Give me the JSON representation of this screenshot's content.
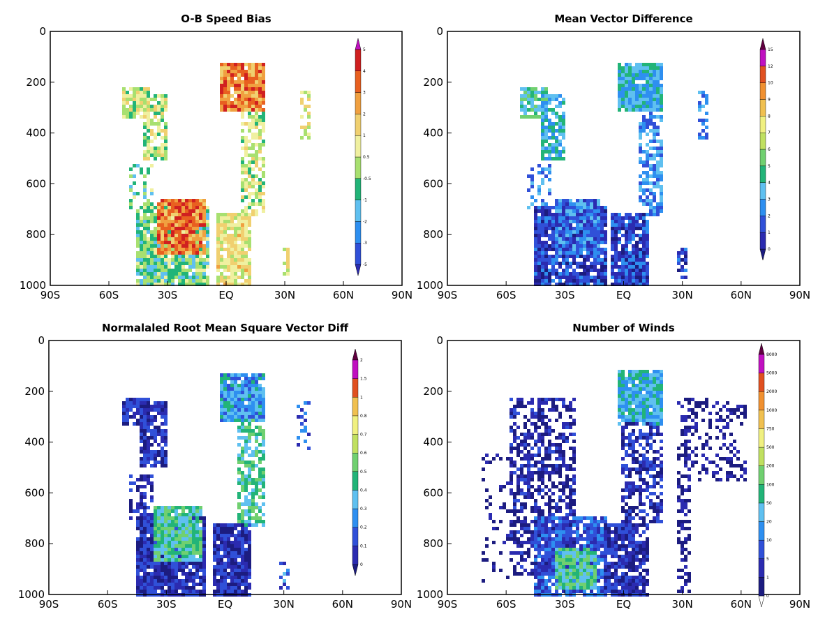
{
  "chart_data": [
    {
      "type": "heatmap",
      "title": "O-B Speed Bias",
      "x_ticks": [
        "90S",
        "60S",
        "30S",
        "EQ",
        "30N",
        "60N",
        "90N"
      ],
      "y_ticks": [
        "0",
        "200",
        "400",
        "600",
        "800",
        "1000"
      ],
      "ylim": [
        1000,
        0
      ],
      "xlim": [
        -90,
        90
      ],
      "colorbar_labels": [
        "-5",
        "-3",
        "-2",
        "-1",
        "-0.5",
        "0.5",
        "1",
        "2",
        "3",
        "4",
        "5"
      ],
      "colors": [
        "#2b2bb0",
        "#3050d8",
        "#2e8ff0",
        "#5fc0f0",
        "#22b478",
        "#a8e070",
        "#f0f0a0",
        "#f0d070",
        "#f0a040",
        "#e86020",
        "#d02020",
        "#c010c0"
      ],
      "value_type": "signed",
      "regions": [
        {
          "lat": [
            -52,
            -40
          ],
          "p": [
            230,
            330
          ],
          "value": 0,
          "density": 0.85
        },
        {
          "lat": [
            -42,
            -30
          ],
          "p": [
            250,
            500
          ],
          "value": 0,
          "density": 0.75
        },
        {
          "lat": [
            -48,
            -38
          ],
          "p": [
            530,
            700
          ],
          "value": -1,
          "density": 0.35
        },
        {
          "lat": [
            -2,
            20
          ],
          "p": [
            130,
            310
          ],
          "value": 2.5,
          "density": 0.95
        },
        {
          "lat": [
            8,
            20
          ],
          "p": [
            320,
            720
          ],
          "value": 0,
          "density": 0.65
        },
        {
          "lat": [
            38,
            42
          ],
          "p": [
            240,
            420
          ],
          "value": 0.5,
          "density": 0.5
        },
        {
          "lat": [
            -45,
            -10
          ],
          "p": [
            700,
            1000
          ],
          "value": -1,
          "density": 0.9
        },
        {
          "lat": [
            -35,
            -12
          ],
          "p": [
            660,
            870
          ],
          "value": 2.5,
          "density": 0.95
        },
        {
          "lat": [
            -5,
            12
          ],
          "p": [
            720,
            1000
          ],
          "value": 0.5,
          "density": 0.9
        },
        {
          "lat": [
            29,
            32
          ],
          "p": [
            860,
            970
          ],
          "value": 0.5,
          "density": 0.6
        }
      ]
    },
    {
      "type": "heatmap",
      "title": "Mean Vector Difference",
      "x_ticks": [
        "90S",
        "60S",
        "30S",
        "EQ",
        "30N",
        "60N",
        "90N"
      ],
      "y_ticks": [
        "0",
        "200",
        "400",
        "600",
        "800",
        "1000"
      ],
      "ylim": [
        1000,
        0
      ],
      "xlim": [
        -90,
        90
      ],
      "colorbar_labels": [
        "0",
        "1",
        "2",
        "3",
        "4",
        "5",
        "6",
        "7",
        "8",
        "9",
        "10",
        "12",
        "15"
      ],
      "colors": [
        "#1c1c80",
        "#2b2bb0",
        "#3050d8",
        "#2e8ff0",
        "#5fc0f0",
        "#22b478",
        "#70d070",
        "#c0e060",
        "#f0f080",
        "#f0c050",
        "#f09030",
        "#e05020",
        "#c010c0",
        "#600040"
      ],
      "value_type": "magnitude",
      "regions": [
        {
          "lat": [
            -52,
            -40
          ],
          "p": [
            230,
            330
          ],
          "value": 5,
          "density": 0.85
        },
        {
          "lat": [
            -42,
            -30
          ],
          "p": [
            250,
            500
          ],
          "value": 4,
          "density": 0.75
        },
        {
          "lat": [
            -48,
            -38
          ],
          "p": [
            530,
            700
          ],
          "value": 3,
          "density": 0.35
        },
        {
          "lat": [
            -2,
            20
          ],
          "p": [
            130,
            310
          ],
          "value": 4,
          "density": 0.95
        },
        {
          "lat": [
            8,
            20
          ],
          "p": [
            320,
            720
          ],
          "value": 3,
          "density": 0.65
        },
        {
          "lat": [
            38,
            42
          ],
          "p": [
            240,
            420
          ],
          "value": 3,
          "density": 0.5
        },
        {
          "lat": [
            -45,
            -10
          ],
          "p": [
            700,
            1000
          ],
          "value": 1.5,
          "density": 0.9
        },
        {
          "lat": [
            -35,
            -12
          ],
          "p": [
            660,
            870
          ],
          "value": 2.5,
          "density": 0.95
        },
        {
          "lat": [
            -5,
            12
          ],
          "p": [
            720,
            1000
          ],
          "value": 1.5,
          "density": 0.9
        },
        {
          "lat": [
            29,
            32
          ],
          "p": [
            860,
            970
          ],
          "value": 1.5,
          "density": 0.6
        }
      ]
    },
    {
      "type": "heatmap",
      "title": "Normalaled Root Mean Square Vector Diff",
      "x_ticks": [
        "90S",
        "60S",
        "30S",
        "EQ",
        "30N",
        "60N",
        "90N"
      ],
      "y_ticks": [
        "0",
        "200",
        "400",
        "600",
        "800",
        "1000"
      ],
      "ylim": [
        1000,
        0
      ],
      "xlim": [
        -90,
        90
      ],
      "colorbar_labels": [
        "0",
        "0.1",
        "0.2",
        "0.3",
        "0.4",
        "0.5",
        "0.6",
        "0.7",
        "0.8",
        "1",
        "1.5",
        "2"
      ],
      "colors": [
        "#1c1c80",
        "#2b2bb0",
        "#3050d8",
        "#2e8ff0",
        "#5fc0f0",
        "#22b478",
        "#70d070",
        "#c0e060",
        "#f0f080",
        "#f0c050",
        "#e05020",
        "#c010c0",
        "#600040"
      ],
      "value_type": "magnitude",
      "regions": [
        {
          "lat": [
            -52,
            -40
          ],
          "p": [
            230,
            330
          ],
          "value": 1,
          "density": 0.85
        },
        {
          "lat": [
            -42,
            -30
          ],
          "p": [
            250,
            500
          ],
          "value": 1,
          "density": 0.75
        },
        {
          "lat": [
            -48,
            -38
          ],
          "p": [
            530,
            700
          ],
          "value": 1,
          "density": 0.35
        },
        {
          "lat": [
            -2,
            20
          ],
          "p": [
            130,
            310
          ],
          "value": 3.5,
          "density": 0.95
        },
        {
          "lat": [
            8,
            20
          ],
          "p": [
            320,
            720
          ],
          "value": 5,
          "density": 0.65
        },
        {
          "lat": [
            38,
            42
          ],
          "p": [
            240,
            420
          ],
          "value": 2,
          "density": 0.5
        },
        {
          "lat": [
            -45,
            -10
          ],
          "p": [
            700,
            1000
          ],
          "value": 1,
          "density": 0.9
        },
        {
          "lat": [
            -35,
            -12
          ],
          "p": [
            660,
            870
          ],
          "value": 5,
          "density": 0.95
        },
        {
          "lat": [
            -5,
            12
          ],
          "p": [
            720,
            1000
          ],
          "value": 1,
          "density": 0.9
        },
        {
          "lat": [
            29,
            32
          ],
          "p": [
            860,
            970
          ],
          "value": 2.5,
          "density": 0.6
        }
      ]
    },
    {
      "type": "heatmap",
      "title": "Number of Winds",
      "x_ticks": [
        "90S",
        "60S",
        "30S",
        "EQ",
        "30N",
        "60N",
        "90N"
      ],
      "y_ticks": [
        "0",
        "200",
        "400",
        "600",
        "800",
        "1000"
      ],
      "ylim": [
        1000,
        0
      ],
      "xlim": [
        -90,
        90
      ],
      "colorbar_labels": [
        "0",
        "1",
        "5",
        "10",
        "20",
        "50",
        "100",
        "200",
        "500",
        "750",
        "1000",
        "2000",
        "5000",
        "8000"
      ],
      "colors": [
        "#ffffff",
        "#1c1c80",
        "#2b2bb0",
        "#3050d8",
        "#2e8ff0",
        "#5fc0f0",
        "#22b478",
        "#70d070",
        "#c0e060",
        "#f0f080",
        "#f0c050",
        "#f09030",
        "#e05020",
        "#c010c0",
        "#600040"
      ],
      "value_type": "count",
      "regions": [
        {
          "lat": [
            -58,
            -25
          ],
          "p": [
            230,
            920
          ],
          "value": 1.5,
          "density": 0.55
        },
        {
          "lat": [
            -2,
            20
          ],
          "p": [
            120,
            330
          ],
          "value": 5,
          "density": 0.95
        },
        {
          "lat": [
            0,
            20
          ],
          "p": [
            330,
            720
          ],
          "value": 2,
          "density": 0.6
        },
        {
          "lat": [
            -45,
            -10
          ],
          "p": [
            700,
            1000
          ],
          "value": 3,
          "density": 0.85
        },
        {
          "lat": [
            -35,
            -15
          ],
          "p": [
            820,
            980
          ],
          "value": 6,
          "density": 0.9
        },
        {
          "lat": [
            -10,
            12
          ],
          "p": [
            720,
            1000
          ],
          "value": 2,
          "density": 0.85
        },
        {
          "lat": [
            29,
            33
          ],
          "p": [
            230,
            1000
          ],
          "value": 1,
          "density": 0.45
        },
        {
          "lat": [
            36,
            62
          ],
          "p": [
            230,
            550
          ],
          "value": 1,
          "density": 0.3
        },
        {
          "lat": [
            -72,
            -55
          ],
          "p": [
            450,
            950
          ],
          "value": 1,
          "density": 0.15
        }
      ]
    }
  ]
}
